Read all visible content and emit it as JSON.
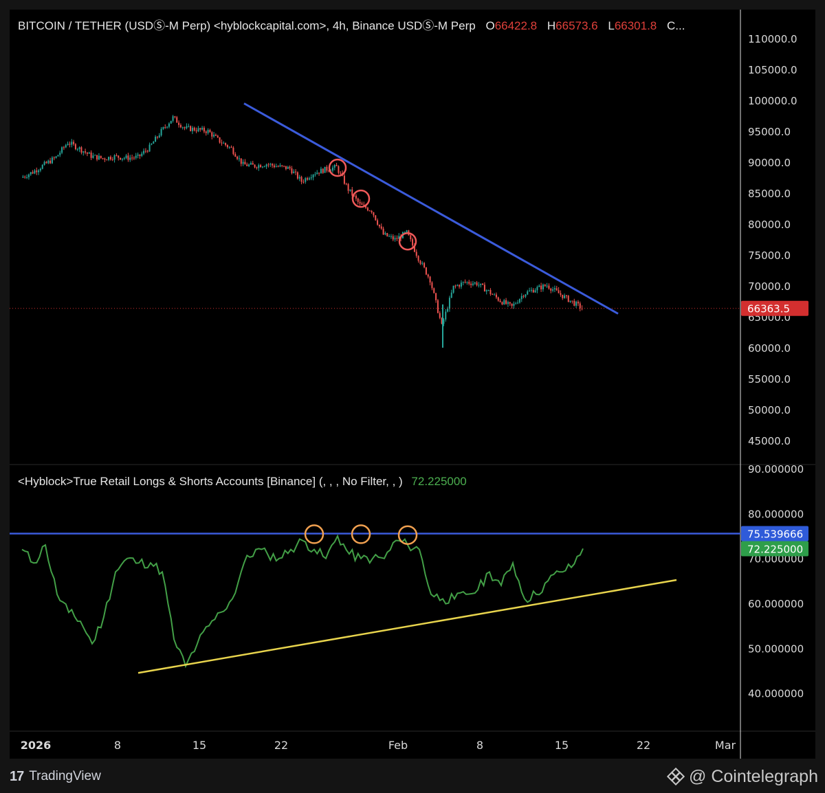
{
  "header": {
    "symbol_text": "BITCOIN / TETHER (USDⓈ-M Perp) <hyblockcapital.com>, 4h, Binance USDⓈ-M Perp",
    "o_label": "O",
    "o_value": "66422.8",
    "h_label": "H",
    "h_value": "66573.6",
    "l_label": "L",
    "l_value": "66301.8",
    "c_label": "C..."
  },
  "indicator_header": {
    "name": "<Hyblock>True Retail Longs & Shorts Accounts [Binance] (, , , No Filter, , )",
    "value": "72.225000"
  },
  "footer": {
    "tradingview_logo": "17",
    "tradingview_label": "TradingView",
    "source_label": "@ Cointelegraph"
  },
  "colors": {
    "background": "#000000",
    "up_candle": "#26a69a",
    "down_candle": "#ef5350",
    "trendline": "#3b5bdb",
    "indicator_line": "#43a047",
    "support_line": "#e8d44d",
    "price_marker": "#d32f2f",
    "red_circle": "#f05a5a",
    "orange_circle": "#f0a050"
  },
  "chart_data": [
    {
      "type": "candlestick",
      "interval": "4h",
      "y_axis_ticks": [
        "110000.0",
        "105000.0",
        "100000.0",
        "95000.0",
        "90000.0",
        "85000.0",
        "80000.0",
        "75000.0",
        "70000.0",
        "65000.0",
        "60000.0",
        "55000.0",
        "50000.0",
        "45000.0"
      ],
      "ylim": [
        42000,
        112500
      ],
      "x_axis_ticks": [
        "2026",
        "8",
        "15",
        "22",
        "Feb",
        "8",
        "15",
        "22",
        "Mar"
      ],
      "x_range_days": [
        "2026-01-01",
        "2026-03-02"
      ],
      "last_price": 66363.5,
      "last_price_label": "66363.5",
      "close_path": [
        [
          "2026-01-01",
          87500
        ],
        [
          "2026-01-02",
          88400
        ],
        [
          "2026-01-03",
          89600
        ],
        [
          "2026-01-04",
          90800
        ],
        [
          "2026-01-05",
          93200
        ],
        [
          "2026-01-06",
          92200
        ],
        [
          "2026-01-07",
          91000
        ],
        [
          "2026-01-08",
          90600
        ],
        [
          "2026-01-09",
          90900
        ],
        [
          "2026-01-10",
          90700
        ],
        [
          "2026-01-11",
          90800
        ],
        [
          "2026-01-12",
          92400
        ],
        [
          "2026-01-13",
          95000
        ],
        [
          "2026-01-14",
          97200
        ],
        [
          "2026-01-15",
          95500
        ],
        [
          "2026-01-16",
          95300
        ],
        [
          "2026-01-17",
          95000
        ],
        [
          "2026-01-18",
          93400
        ],
        [
          "2026-01-19",
          92200
        ],
        [
          "2026-01-20",
          89600
        ],
        [
          "2026-01-21",
          89400
        ],
        [
          "2026-01-22",
          89700
        ],
        [
          "2026-01-23",
          89300
        ],
        [
          "2026-01-24",
          89000
        ],
        [
          "2026-01-25",
          86900
        ],
        [
          "2026-01-26",
          88200
        ],
        [
          "2026-01-27",
          88800
        ],
        [
          "2026-01-28",
          89200
        ],
        [
          "2026-01-29",
          85600
        ],
        [
          "2026-01-30",
          83100
        ],
        [
          "2026-01-31",
          82200
        ],
        [
          "2026-02-01",
          78300
        ],
        [
          "2026-02-02",
          77500
        ],
        [
          "2026-02-03",
          78600
        ],
        [
          "2026-02-04",
          74500
        ],
        [
          "2026-02-05",
          71000
        ],
        [
          "2026-02-06",
          63500
        ],
        [
          "2026-02-07",
          69800
        ],
        [
          "2026-02-08",
          70600
        ],
        [
          "2026-02-09",
          70400
        ],
        [
          "2026-02-10",
          69100
        ],
        [
          "2026-02-11",
          67600
        ],
        [
          "2026-02-12",
          66600
        ],
        [
          "2026-02-13",
          68700
        ],
        [
          "2026-02-14",
          69500
        ],
        [
          "2026-02-15",
          70100
        ],
        [
          "2026-02-16",
          68800
        ],
        [
          "2026-02-17",
          67600
        ],
        [
          "2026-02-18",
          66400
        ]
      ],
      "annotations": {
        "resistance_trendline": [
          [
            "2026-01-20",
            99500
          ],
          [
            "2026-02-21",
            65500
          ]
        ],
        "red_circles": [
          [
            "2026-01-28",
            89100
          ],
          [
            "2026-01-30",
            84100
          ],
          [
            "2026-02-03",
            77200
          ]
        ]
      }
    },
    {
      "type": "line",
      "title": "<Hyblock>True Retail Longs & Shorts Accounts [Binance] (, , , No Filter, , )",
      "y_axis_ticks": [
        "90.000000",
        "80.000000",
        "70.000000",
        "60.000000",
        "50.000000",
        "40.000000"
      ],
      "ylim": [
        32.5,
        90.2
      ],
      "current_value": 72.225,
      "current_value_label": "72.225000",
      "horizontal_level": 75.539666,
      "horizontal_level_label": "75.539666",
      "series": [
        {
          "values": [
            [
              "2026-01-01",
              72
            ],
            [
              "2026-01-02",
              69
            ],
            [
              "2026-01-03",
              73
            ],
            [
              "2026-01-04",
              62
            ],
            [
              "2026-01-05",
              58
            ],
            [
              "2026-01-06",
              56
            ],
            [
              "2026-01-07",
              51
            ],
            [
              "2026-01-08",
              57
            ],
            [
              "2026-01-09",
              67
            ],
            [
              "2026-01-10",
              70
            ],
            [
              "2026-01-11",
              69
            ],
            [
              "2026-01-12",
              69
            ],
            [
              "2026-01-13",
              67
            ],
            [
              "2026-01-14",
              52
            ],
            [
              "2026-01-15",
              46
            ],
            [
              "2026-01-16",
              51
            ],
            [
              "2026-01-17",
              55
            ],
            [
              "2026-01-18",
              58
            ],
            [
              "2026-01-19",
              61
            ],
            [
              "2026-01-20",
              69
            ],
            [
              "2026-01-21",
              72
            ],
            [
              "2026-01-22",
              71
            ],
            [
              "2026-01-23",
              70
            ],
            [
              "2026-01-24",
              72
            ],
            [
              "2026-01-25",
              74
            ],
            [
              "2026-01-26",
              72
            ],
            [
              "2026-01-27",
              70
            ],
            [
              "2026-01-28",
              75
            ],
            [
              "2026-01-29",
              71
            ],
            [
              "2026-01-30",
              70
            ],
            [
              "2026-01-31",
              70
            ],
            [
              "2026-02-01",
              70
            ],
            [
              "2026-02-02",
              74
            ],
            [
              "2026-02-03",
              73
            ],
            [
              "2026-02-04",
              72
            ],
            [
              "2026-02-05",
              62
            ],
            [
              "2026-02-06",
              61
            ],
            [
              "2026-02-07",
              61
            ],
            [
              "2026-02-08",
              62
            ],
            [
              "2026-02-09",
              63
            ],
            [
              "2026-02-10",
              67
            ],
            [
              "2026-02-11",
              64
            ],
            [
              "2026-02-12",
              69
            ],
            [
              "2026-02-13",
              61
            ],
            [
              "2026-02-14",
              62
            ],
            [
              "2026-02-15",
              65
            ],
            [
              "2026-02-16",
              67
            ],
            [
              "2026-02-17",
              68
            ],
            [
              "2026-02-18",
              72.2
            ]
          ]
        }
      ],
      "annotations": {
        "blue_horizontal_line": 75.539666,
        "support_trendline": [
          [
            "2026-01-12",
            44.5
          ],
          [
            "2026-02-26",
            65.2
          ]
        ],
        "orange_circles": [
          [
            "2026-01-26",
            75.4
          ],
          [
            "2026-01-30",
            75.4
          ],
          [
            "2026-02-03",
            75.2
          ]
        ]
      }
    }
  ]
}
